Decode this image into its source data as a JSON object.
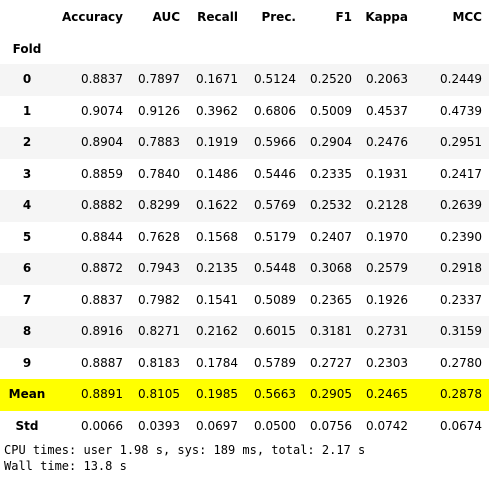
{
  "table": {
    "index_name": "Fold",
    "columns": [
      "Accuracy",
      "AUC",
      "Recall",
      "Prec.",
      "F1",
      "Kappa",
      "MCC"
    ],
    "rows": [
      {
        "label": "0",
        "values": [
          "0.8837",
          "0.7897",
          "0.1671",
          "0.5124",
          "0.2520",
          "0.2063",
          "0.2449"
        ]
      },
      {
        "label": "1",
        "values": [
          "0.9074",
          "0.9126",
          "0.3962",
          "0.6806",
          "0.5009",
          "0.4537",
          "0.4739"
        ]
      },
      {
        "label": "2",
        "values": [
          "0.8904",
          "0.7883",
          "0.1919",
          "0.5966",
          "0.2904",
          "0.2476",
          "0.2951"
        ]
      },
      {
        "label": "3",
        "values": [
          "0.8859",
          "0.7840",
          "0.1486",
          "0.5446",
          "0.2335",
          "0.1931",
          "0.2417"
        ]
      },
      {
        "label": "4",
        "values": [
          "0.8882",
          "0.8299",
          "0.1622",
          "0.5769",
          "0.2532",
          "0.2128",
          "0.2639"
        ]
      },
      {
        "label": "5",
        "values": [
          "0.8844",
          "0.7628",
          "0.1568",
          "0.5179",
          "0.2407",
          "0.1970",
          "0.2390"
        ]
      },
      {
        "label": "6",
        "values": [
          "0.8872",
          "0.7943",
          "0.2135",
          "0.5448",
          "0.3068",
          "0.2579",
          "0.2918"
        ]
      },
      {
        "label": "7",
        "values": [
          "0.8837",
          "0.7982",
          "0.1541",
          "0.5089",
          "0.2365",
          "0.1926",
          "0.2337"
        ]
      },
      {
        "label": "8",
        "values": [
          "0.8916",
          "0.8271",
          "0.2162",
          "0.6015",
          "0.3181",
          "0.2731",
          "0.3159"
        ]
      },
      {
        "label": "9",
        "values": [
          "0.8887",
          "0.8183",
          "0.1784",
          "0.5789",
          "0.2727",
          "0.2303",
          "0.2780"
        ]
      },
      {
        "label": "Mean",
        "values": [
          "0.8891",
          "0.8105",
          "0.1985",
          "0.5663",
          "0.2905",
          "0.2465",
          "0.2878"
        ],
        "highlight": true
      },
      {
        "label": "Std",
        "values": [
          "0.0066",
          "0.0393",
          "0.0697",
          "0.0500",
          "0.0756",
          "0.0742",
          "0.0674"
        ]
      }
    ],
    "colors": {
      "highlight": "#ffff00",
      "stripe": "#f5f5f5"
    }
  },
  "stdout": {
    "line1": "CPU times: user 1.98 s, sys: 189 ms, total: 2.17 s",
    "line2": "Wall time: 13.8 s"
  }
}
